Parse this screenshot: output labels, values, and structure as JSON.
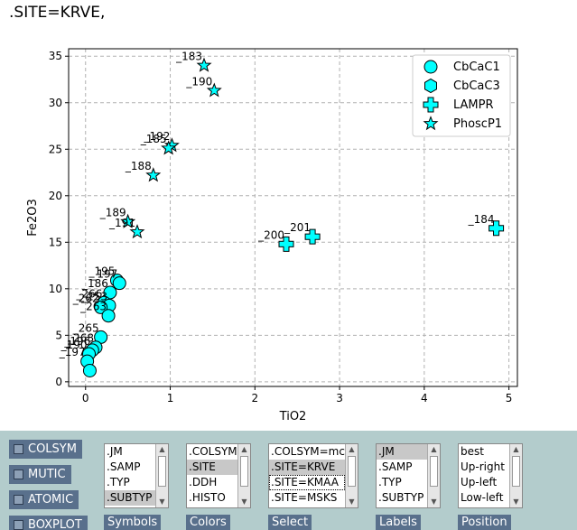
{
  "title": ".SITE=KRVE,",
  "chart_data": {
    "type": "scatter",
    "xlabel": "TiO2",
    "ylabel": "Fe2O3",
    "xlim": [
      -0.2,
      5.1
    ],
    "ylim": [
      -0.5,
      35.8
    ],
    "xticks": [
      0,
      1,
      2,
      3,
      4,
      5
    ],
    "yticks": [
      0,
      5,
      10,
      15,
      20,
      25,
      30,
      35
    ],
    "grid": true,
    "legend_position": "top-right",
    "series": [
      {
        "name": "CbCaC1",
        "marker": "circle",
        "color": "#00ffff",
        "points": [
          {
            "x": 0.37,
            "y": 10.9,
            "label": "_195"
          },
          {
            "x": 0.4,
            "y": 10.6,
            "label": "_197"
          },
          {
            "x": 0.29,
            "y": 9.6,
            "label": "_186"
          },
          {
            "x": 0.22,
            "y": 8.5,
            "label": "_266"
          },
          {
            "x": 0.28,
            "y": 8.2,
            "label": "_253"
          },
          {
            "x": 0.18,
            "y": 8.0,
            "label": "_262"
          },
          {
            "x": 0.27,
            "y": 7.1,
            "label": "_263"
          },
          {
            "x": 0.18,
            "y": 4.8,
            "label": "_265"
          },
          {
            "x": 0.12,
            "y": 3.7,
            "label": "_268"
          },
          {
            "x": 0.08,
            "y": 3.4,
            "label": "_196"
          },
          {
            "x": 0.04,
            "y": 3.0,
            "label": "_190"
          },
          {
            "x": 0.02,
            "y": 2.2,
            "label": "_197"
          },
          {
            "x": 0.05,
            "y": 1.2,
            "label": ""
          }
        ]
      },
      {
        "name": "CbCaC3",
        "marker": "hexagon",
        "color": "#00ffff",
        "points": []
      },
      {
        "name": "LAMPR",
        "marker": "plus",
        "color": "#00ffff",
        "points": [
          {
            "x": 2.37,
            "y": 14.8,
            "label": "_200"
          },
          {
            "x": 2.68,
            "y": 15.6,
            "label": "_201"
          },
          {
            "x": 4.85,
            "y": 16.5,
            "label": "_184"
          }
        ]
      },
      {
        "name": "PhoscP1",
        "marker": "star",
        "color": "#00ffff",
        "points": [
          {
            "x": 1.4,
            "y": 34.0,
            "label": "_183"
          },
          {
            "x": 1.52,
            "y": 31.3,
            "label": "_190"
          },
          {
            "x": 1.02,
            "y": 25.4,
            "label": "_192"
          },
          {
            "x": 0.98,
            "y": 25.1,
            "label": "_185"
          },
          {
            "x": 0.8,
            "y": 22.2,
            "label": "_188"
          },
          {
            "x": 0.5,
            "y": 17.2,
            "label": "_189"
          },
          {
            "x": 0.61,
            "y": 16.1,
            "label": "_191"
          }
        ]
      }
    ]
  },
  "checkboxes": [
    {
      "label": "COLSYM",
      "checked": false
    },
    {
      "label": "MUTIC",
      "checked": false
    },
    {
      "label": "ATOMIC",
      "checked": false
    },
    {
      "label": "BOXPLOT",
      "checked": false
    }
  ],
  "lists": {
    "symbols": {
      "caption": "Symbols",
      "items": [
        ".JM",
        ".SAMP",
        ".TYP",
        ".SUBTYP"
      ],
      "selected": 3,
      "focused": -1
    },
    "colors": {
      "caption": "Colors",
      "items": [
        ".COLSYM",
        ".SITE",
        ".DDH",
        ".HISTO"
      ],
      "selected": 1,
      "focused": -1
    },
    "select": {
      "caption": "Select",
      "items": [
        ".COLSYM=mc",
        ".SITE=KRVE",
        ".SITE=KMAA",
        ".SITE=MSKS"
      ],
      "selected": 1,
      "focused": 2
    },
    "labels": {
      "caption": "Labels",
      "items": [
        ".JM",
        ".SAMP",
        ".TYP",
        ".SUBTYP"
      ],
      "selected": 0,
      "focused": -1
    },
    "position": {
      "caption": "Position",
      "items": [
        "best",
        "Up-right",
        "Up-left",
        "Low-left"
      ],
      "selected": -1,
      "focused": -1
    }
  }
}
